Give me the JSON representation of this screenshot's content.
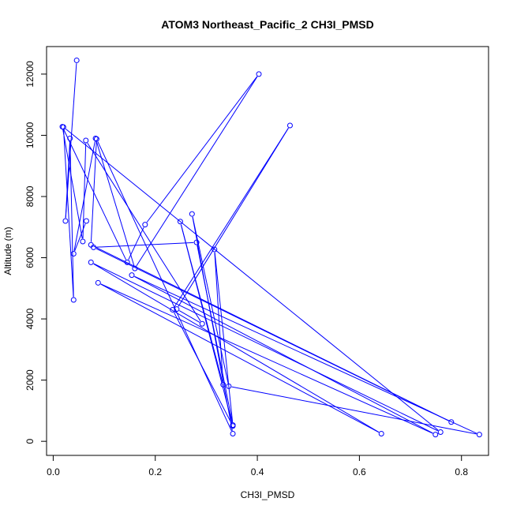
{
  "chart_data": {
    "type": "line",
    "title": "ATOM3 Northeast_Pacific_2 CH3I_PMSD",
    "xlabel": "CH3I_PMSD",
    "ylabel": "Altitude (m)",
    "xlim": [
      -0.013,
      0.853
    ],
    "ylim": [
      -460,
      12900
    ],
    "xticks": [
      0.0,
      0.2,
      0.4,
      0.6,
      0.8
    ],
    "xtick_labels": [
      "0.0",
      "0.2",
      "0.4",
      "0.6",
      "0.8"
    ],
    "yticks": [
      0,
      2000,
      4000,
      6000,
      8000,
      10000,
      12000
    ],
    "ytick_labels": [
      "0",
      "2000",
      "4000",
      "6000",
      "8000",
      "10000",
      "12000"
    ],
    "grid": false,
    "series": [
      {
        "color": "#0000ff",
        "marker": "open-circle",
        "points": [
          {
            "x": 0.046,
            "y": 12450
          },
          {
            "x": 0.024,
            "y": 7200
          },
          {
            "x": 0.033,
            "y": 9900
          },
          {
            "x": 0.04,
            "y": 4620
          },
          {
            "x": 0.02,
            "y": 10270
          },
          {
            "x": 0.759,
            "y": 300
          },
          {
            "x": 0.074,
            "y": 5850
          },
          {
            "x": 0.643,
            "y": 250
          },
          {
            "x": 0.088,
            "y": 5180
          },
          {
            "x": 0.749,
            "y": 220
          },
          {
            "x": 0.154,
            "y": 5430
          },
          {
            "x": 0.835,
            "y": 220
          },
          {
            "x": 0.344,
            "y": 1800
          },
          {
            "x": 0.272,
            "y": 7430
          },
          {
            "x": 0.352,
            "y": 250
          },
          {
            "x": 0.085,
            "y": 9880
          },
          {
            "x": 0.074,
            "y": 6420
          },
          {
            "x": 0.78,
            "y": 630
          },
          {
            "x": 0.079,
            "y": 6340
          },
          {
            "x": 0.281,
            "y": 6500
          },
          {
            "x": 0.352,
            "y": 530
          },
          {
            "x": 0.316,
            "y": 6270
          },
          {
            "x": 0.333,
            "y": 1850
          },
          {
            "x": 0.249,
            "y": 7180
          },
          {
            "x": 0.352,
            "y": 500
          },
          {
            "x": 0.234,
            "y": 4300
          },
          {
            "x": 0.464,
            "y": 10320
          },
          {
            "x": 0.242,
            "y": 4320
          },
          {
            "x": 0.292,
            "y": 3840
          },
          {
            "x": 0.064,
            "y": 9830
          },
          {
            "x": 0.058,
            "y": 6530
          },
          {
            "x": 0.018,
            "y": 10280
          },
          {
            "x": 0.145,
            "y": 5850
          },
          {
            "x": 0.18,
            "y": 7080
          },
          {
            "x": 0.403,
            "y": 12000
          },
          {
            "x": 0.16,
            "y": 5650
          },
          {
            "x": 0.083,
            "y": 9900
          },
          {
            "x": 0.04,
            "y": 6130
          },
          {
            "x": 0.065,
            "y": 7200
          }
        ]
      }
    ]
  }
}
